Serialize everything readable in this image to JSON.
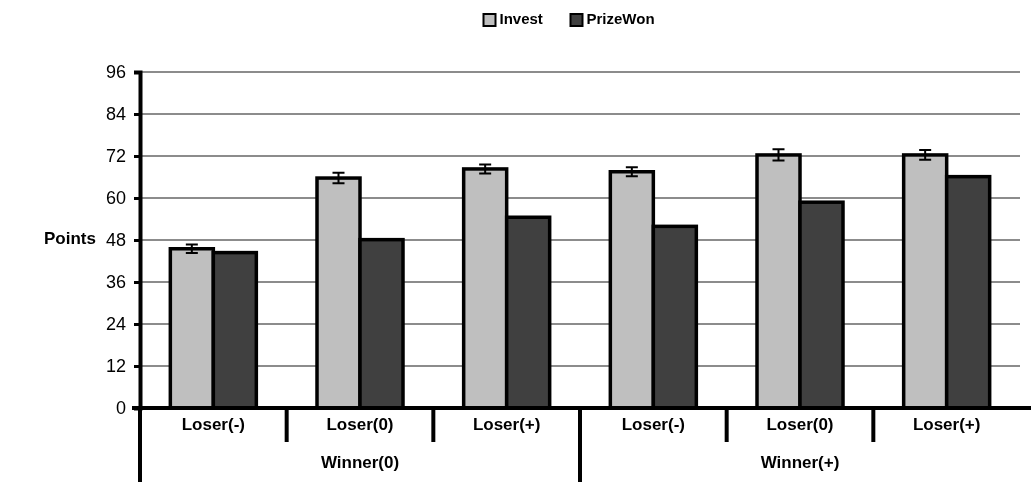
{
  "chart_data": {
    "type": "bar",
    "ylabel": "Points",
    "categories": [
      "Loser(-)",
      "Loser(0)",
      "Loser(+)",
      "Loser(-)",
      "Loser(0)",
      "Loser(+)"
    ],
    "series": [
      {
        "name": "Invest",
        "color": "#bfbfbf",
        "values": [
          45.5,
          65.7,
          68.3,
          67.5,
          72.3,
          72.3
        ],
        "errors": [
          1.2,
          1.5,
          1.3,
          1.3,
          1.6,
          1.4
        ]
      },
      {
        "name": "PrizeWon",
        "color": "#404040",
        "values": [
          44.4,
          48.1,
          54.5,
          51.9,
          58.8,
          66.1
        ]
      }
    ],
    "ylim": [
      0,
      96
    ],
    "yticks": [
      0,
      12,
      24,
      36,
      48,
      60,
      72,
      84,
      96
    ],
    "grid": "y",
    "legend": "top",
    "annotations": [
      "Winner(0)",
      "Winner(+)"
    ]
  }
}
